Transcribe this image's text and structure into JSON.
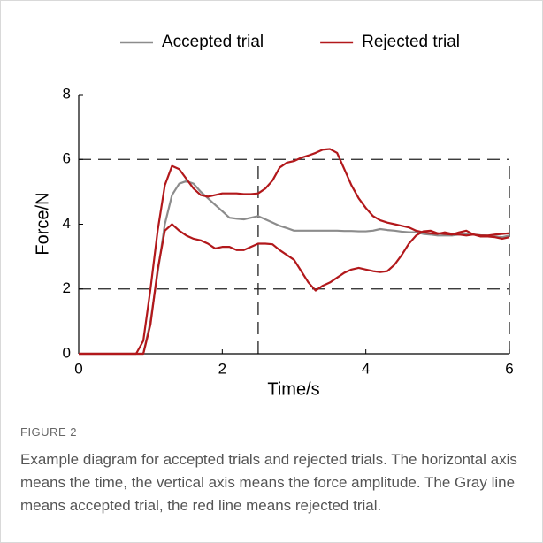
{
  "chart_data": {
    "type": "line",
    "legend": "top",
    "xlabel": "Time/s",
    "ylabel": "Force/N",
    "xlim": [
      0,
      6
    ],
    "ylim": [
      0,
      8
    ],
    "xticks": [
      0,
      2,
      4,
      6
    ],
    "yticks": [
      0,
      2,
      4,
      6,
      8
    ],
    "hlines": [
      2,
      6
    ],
    "vlines": [
      2.5,
      6
    ],
    "x": [
      0,
      0.1,
      0.2,
      0.3,
      0.4,
      0.5,
      0.6,
      0.7,
      0.8,
      0.9,
      1,
      1.1,
      1.2,
      1.3,
      1.4,
      1.5,
      1.6,
      1.7,
      1.8,
      1.9,
      2,
      2.1,
      2.2,
      2.3,
      2.4,
      2.5,
      2.6,
      2.7,
      2.8,
      2.9,
      3,
      3.1,
      3.2,
      3.3,
      3.4,
      3.5,
      3.6,
      3.7,
      3.8,
      3.9,
      4,
      4.1,
      4.2,
      4.3,
      4.4,
      4.5,
      4.6,
      4.7,
      4.8,
      4.9,
      5,
      5.1,
      5.2,
      5.3,
      5.4,
      5.5,
      5.6,
      5.7,
      5.8,
      5.9,
      6
    ],
    "series": [
      {
        "name": "Accepted trial",
        "color": "#8c8c8c",
        "values": [
          0,
          0,
          0,
          0,
          0,
          0,
          0,
          0,
          0,
          0,
          1.0,
          2.5,
          4.0,
          4.9,
          5.25,
          5.33,
          5.25,
          5.0,
          4.8,
          4.6,
          4.4,
          4.2,
          4.17,
          4.15,
          4.2,
          4.25,
          4.15,
          4.05,
          3.95,
          3.88,
          3.8,
          3.8,
          3.8,
          3.8,
          3.8,
          3.8,
          3.8,
          3.79,
          3.79,
          3.78,
          3.78,
          3.8,
          3.85,
          3.82,
          3.8,
          3.77,
          3.75,
          3.75,
          3.7,
          3.68,
          3.65,
          3.65,
          3.65,
          3.68,
          3.7,
          3.68,
          3.66,
          3.65,
          3.62,
          3.6,
          3.65
        ]
      },
      {
        "name": "Rejected trial",
        "color": "#b2181b",
        "values": [
          0,
          0,
          0,
          0,
          0,
          0,
          0,
          0,
          0,
          0.4,
          2.0,
          3.8,
          5.2,
          5.8,
          5.7,
          5.4,
          5.1,
          4.9,
          4.85,
          4.9,
          4.95,
          4.95,
          4.95,
          4.93,
          4.93,
          4.95,
          5.1,
          5.35,
          5.75,
          5.9,
          5.95,
          6.05,
          6.12,
          6.2,
          6.3,
          6.32,
          6.2,
          5.7,
          5.2,
          4.8,
          4.5,
          4.25,
          4.12,
          4.05,
          4.0,
          3.95,
          3.9,
          3.8,
          3.75,
          3.72,
          3.7,
          3.75,
          3.7,
          3.68,
          3.65,
          3.68,
          3.65,
          3.65,
          3.68,
          3.7,
          3.72
        ]
      },
      {
        "color": "#b2181b",
        "values": [
          0,
          0,
          0,
          0,
          0,
          0,
          0,
          0,
          0,
          0,
          0.9,
          2.6,
          3.8,
          4.0,
          3.8,
          3.65,
          3.55,
          3.5,
          3.4,
          3.25,
          3.3,
          3.3,
          3.2,
          3.2,
          3.3,
          3.4,
          3.4,
          3.38,
          3.2,
          3.05,
          2.9,
          2.55,
          2.2,
          1.95,
          2.1,
          2.2,
          2.35,
          2.5,
          2.6,
          2.65,
          2.6,
          2.55,
          2.52,
          2.55,
          2.75,
          3.05,
          3.4,
          3.65,
          3.78,
          3.8,
          3.72,
          3.7,
          3.68,
          3.75,
          3.8,
          3.68,
          3.62,
          3.62,
          3.6,
          3.55,
          3.6
        ]
      }
    ]
  },
  "caption": {
    "label": "FIGURE 2",
    "text": "Example diagram for accepted trials and rejected trials. The horizontal axis means the time, the vertical axis means the force amplitude. The Gray line means accepted trial, the red line means rejected trial."
  }
}
